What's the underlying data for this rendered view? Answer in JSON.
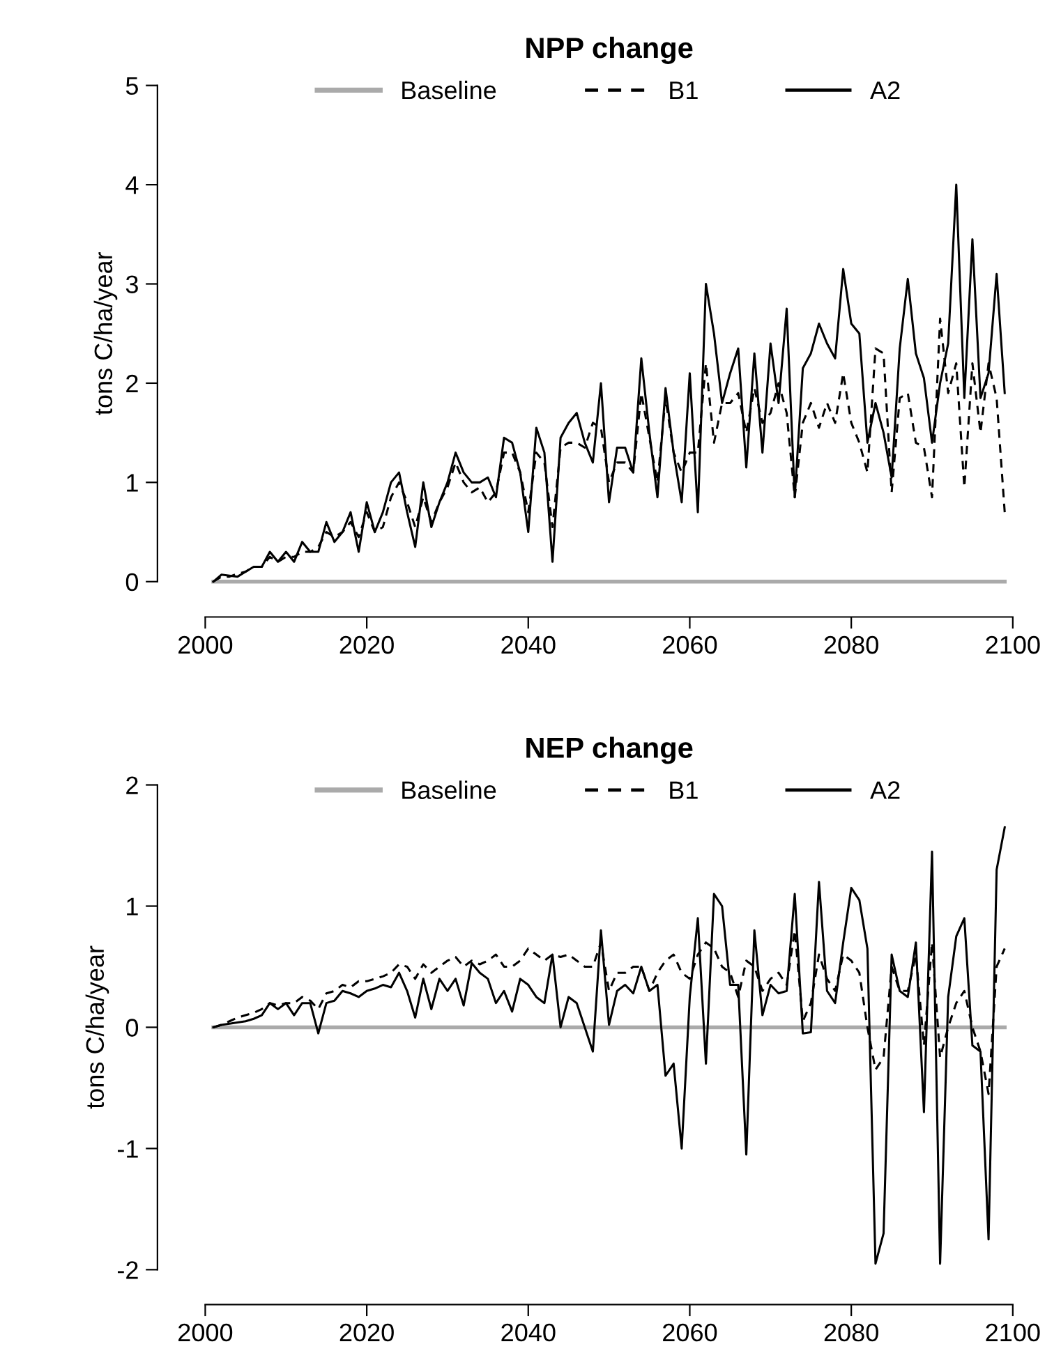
{
  "chart_data": [
    {
      "type": "line",
      "title": "NPP change",
      "ylabel": "tons C/ha/year",
      "x": [
        2001,
        2002,
        2003,
        2004,
        2005,
        2006,
        2007,
        2008,
        2009,
        2010,
        2011,
        2012,
        2013,
        2014,
        2015,
        2016,
        2017,
        2018,
        2019,
        2020,
        2021,
        2022,
        2023,
        2024,
        2025,
        2026,
        2027,
        2028,
        2029,
        2030,
        2031,
        2032,
        2033,
        2034,
        2035,
        2036,
        2037,
        2038,
        2039,
        2040,
        2041,
        2042,
        2043,
        2044,
        2045,
        2046,
        2047,
        2048,
        2049,
        2050,
        2051,
        2052,
        2053,
        2054,
        2055,
        2056,
        2057,
        2058,
        2059,
        2060,
        2061,
        2062,
        2063,
        2064,
        2065,
        2066,
        2067,
        2068,
        2069,
        2070,
        2071,
        2072,
        2073,
        2074,
        2075,
        2076,
        2077,
        2078,
        2079,
        2080,
        2081,
        2082,
        2083,
        2084,
        2085,
        2086,
        2087,
        2088,
        2089,
        2090,
        2091,
        2092,
        2093,
        2094,
        2095,
        2096,
        2097,
        2098,
        2099
      ],
      "series": [
        {
          "name": "Baseline",
          "color": "#aaaaaa",
          "line_style": "solid",
          "values": [
            0,
            0,
            0,
            0,
            0,
            0,
            0,
            0,
            0,
            0,
            0,
            0,
            0,
            0,
            0,
            0,
            0,
            0,
            0,
            0,
            0,
            0,
            0,
            0,
            0,
            0,
            0,
            0,
            0,
            0,
            0,
            0,
            0,
            0,
            0,
            0,
            0,
            0,
            0,
            0,
            0,
            0,
            0,
            0,
            0,
            0,
            0,
            0,
            0,
            0,
            0,
            0,
            0,
            0,
            0,
            0,
            0,
            0,
            0,
            0,
            0,
            0,
            0,
            0,
            0,
            0,
            0,
            0,
            0,
            0,
            0,
            0,
            0,
            0,
            0,
            0,
            0,
            0,
            0,
            0,
            0,
            0,
            0,
            0,
            0,
            0,
            0,
            0,
            0,
            0,
            0,
            0,
            0,
            0,
            0,
            0,
            0,
            0,
            0
          ]
        },
        {
          "name": "B1",
          "color": "#000000",
          "line_style": "dashed",
          "values": [
            0,
            0.05,
            0.05,
            0.08,
            0.1,
            0.15,
            0.15,
            0.25,
            0.2,
            0.25,
            0.25,
            0.3,
            0.3,
            0.35,
            0.5,
            0.45,
            0.5,
            0.6,
            0.45,
            0.7,
            0.5,
            0.55,
            0.85,
            1.0,
            0.8,
            0.55,
            0.85,
            0.6,
            0.8,
            0.95,
            1.2,
            1.0,
            0.9,
            0.95,
            0.8,
            0.9,
            1.3,
            1.3,
            1.1,
            0.7,
            1.3,
            1.2,
            0.55,
            1.35,
            1.4,
            1.4,
            1.35,
            1.6,
            1.55,
            1.0,
            1.2,
            1.2,
            1.1,
            1.9,
            1.45,
            1.0,
            1.85,
            1.3,
            1.1,
            1.3,
            1.3,
            2.2,
            1.4,
            1.8,
            1.8,
            1.9,
            1.5,
            1.95,
            1.6,
            1.7,
            2.0,
            1.7,
            0.85,
            1.6,
            1.8,
            1.55,
            1.8,
            1.6,
            2.1,
            1.6,
            1.4,
            1.1,
            2.35,
            2.3,
            0.9,
            1.85,
            1.9,
            1.4,
            1.35,
            0.85,
            2.65,
            1.9,
            2.2,
            0.95,
            2.2,
            1.5,
            2.2,
            1.85,
            0.7
          ]
        },
        {
          "name": "A2",
          "color": "#000000",
          "line_style": "solid",
          "values": [
            0,
            0.07,
            0.06,
            0.05,
            0.1,
            0.15,
            0.15,
            0.3,
            0.2,
            0.3,
            0.2,
            0.4,
            0.3,
            0.3,
            0.6,
            0.4,
            0.5,
            0.7,
            0.3,
            0.8,
            0.5,
            0.7,
            1.0,
            1.1,
            0.7,
            0.35,
            1.0,
            0.55,
            0.8,
            1.0,
            1.3,
            1.1,
            1.0,
            1.0,
            1.05,
            0.85,
            1.45,
            1.4,
            1.1,
            0.5,
            1.55,
            1.3,
            0.2,
            1.45,
            1.6,
            1.7,
            1.4,
            1.2,
            2.0,
            0.8,
            1.35,
            1.35,
            1.1,
            2.25,
            1.5,
            0.85,
            1.95,
            1.3,
            0.8,
            2.1,
            0.7,
            3.0,
            2.5,
            1.8,
            2.1,
            2.35,
            1.15,
            2.3,
            1.3,
            2.4,
            1.8,
            2.75,
            0.85,
            2.15,
            2.3,
            2.6,
            2.4,
            2.25,
            3.15,
            2.6,
            2.5,
            1.4,
            1.8,
            1.5,
            1.05,
            2.35,
            3.05,
            2.3,
            2.05,
            1.4,
            2.0,
            2.4,
            4.0,
            1.85,
            3.45,
            1.85,
            2.1,
            3.1,
            1.9
          ]
        }
      ],
      "xlim": [
        2000,
        2100
      ],
      "xticks": [
        2000,
        2020,
        2040,
        2060,
        2080,
        2100
      ],
      "ylim": [
        0,
        5
      ],
      "yticks": [
        0,
        1,
        2,
        3,
        4,
        5
      ],
      "legend": "top",
      "grid": false
    },
    {
      "type": "line",
      "title": "NEP change",
      "ylabel": "tons C/ha/year",
      "x": [
        2001,
        2002,
        2003,
        2004,
        2005,
        2006,
        2007,
        2008,
        2009,
        2010,
        2011,
        2012,
        2013,
        2014,
        2015,
        2016,
        2017,
        2018,
        2019,
        2020,
        2021,
        2022,
        2023,
        2024,
        2025,
        2026,
        2027,
        2028,
        2029,
        2030,
        2031,
        2032,
        2033,
        2034,
        2035,
        2036,
        2037,
        2038,
        2039,
        2040,
        2041,
        2042,
        2043,
        2044,
        2045,
        2046,
        2047,
        2048,
        2049,
        2050,
        2051,
        2052,
        2053,
        2054,
        2055,
        2056,
        2057,
        2058,
        2059,
        2060,
        2061,
        2062,
        2063,
        2064,
        2065,
        2066,
        2067,
        2068,
        2069,
        2070,
        2071,
        2072,
        2073,
        2074,
        2075,
        2076,
        2077,
        2078,
        2079,
        2080,
        2081,
        2082,
        2083,
        2084,
        2085,
        2086,
        2087,
        2088,
        2089,
        2090,
        2091,
        2092,
        2093,
        2094,
        2095,
        2096,
        2097,
        2098,
        2099
      ],
      "series": [
        {
          "name": "Baseline",
          "color": "#aaaaaa",
          "line_style": "solid",
          "values": [
            0,
            0,
            0,
            0,
            0,
            0,
            0,
            0,
            0,
            0,
            0,
            0,
            0,
            0,
            0,
            0,
            0,
            0,
            0,
            0,
            0,
            0,
            0,
            0,
            0,
            0,
            0,
            0,
            0,
            0,
            0,
            0,
            0,
            0,
            0,
            0,
            0,
            0,
            0,
            0,
            0,
            0,
            0,
            0,
            0,
            0,
            0,
            0,
            0,
            0,
            0,
            0,
            0,
            0,
            0,
            0,
            0,
            0,
            0,
            0,
            0,
            0,
            0,
            0,
            0,
            0,
            0,
            0,
            0,
            0,
            0,
            0,
            0,
            0,
            0,
            0,
            0,
            0,
            0,
            0,
            0,
            0,
            0,
            0,
            0,
            0,
            0,
            0,
            0,
            0,
            0,
            0,
            0,
            0,
            0,
            0,
            0,
            0,
            0
          ]
        },
        {
          "name": "B1",
          "color": "#000000",
          "line_style": "dashed",
          "values": [
            0,
            0.02,
            0.05,
            0.08,
            0.1,
            0.12,
            0.15,
            0.2,
            0.18,
            0.2,
            0.2,
            0.25,
            0.22,
            0.15,
            0.28,
            0.3,
            0.35,
            0.33,
            0.38,
            0.38,
            0.4,
            0.42,
            0.45,
            0.52,
            0.5,
            0.4,
            0.52,
            0.45,
            0.5,
            0.55,
            0.58,
            0.5,
            0.55,
            0.52,
            0.55,
            0.6,
            0.5,
            0.5,
            0.55,
            0.65,
            0.6,
            0.55,
            0.6,
            0.58,
            0.6,
            0.55,
            0.5,
            0.5,
            0.7,
            0.3,
            0.45,
            0.45,
            0.5,
            0.5,
            0.3,
            0.45,
            0.55,
            0.6,
            0.45,
            0.4,
            0.6,
            0.7,
            0.65,
            0.5,
            0.45,
            0.25,
            0.55,
            0.5,
            0.3,
            0.4,
            0.45,
            0.35,
            0.8,
            0.05,
            0.2,
            0.6,
            0.4,
            0.3,
            0.6,
            0.55,
            0.45,
            0.0,
            -0.35,
            -0.25,
            0.5,
            0.3,
            0.3,
            0.6,
            -0.15,
            0.7,
            -0.25,
            0.0,
            0.2,
            0.3,
            0.0,
            -0.2,
            -0.55,
            0.5,
            0.65
          ]
        },
        {
          "name": "A2",
          "color": "#000000",
          "line_style": "solid",
          "values": [
            0,
            0.02,
            0.03,
            0.04,
            0.05,
            0.07,
            0.1,
            0.2,
            0.15,
            0.2,
            0.1,
            0.2,
            0.2,
            -0.05,
            0.2,
            0.22,
            0.3,
            0.28,
            0.25,
            0.3,
            0.32,
            0.35,
            0.33,
            0.45,
            0.3,
            0.08,
            0.4,
            0.15,
            0.4,
            0.3,
            0.4,
            0.18,
            0.53,
            0.45,
            0.4,
            0.2,
            0.3,
            0.13,
            0.4,
            0.35,
            0.25,
            0.2,
            0.6,
            0.0,
            0.25,
            0.2,
            0.0,
            -0.2,
            0.8,
            0.02,
            0.3,
            0.35,
            0.28,
            0.5,
            0.3,
            0.35,
            -0.4,
            -0.3,
            -1.0,
            0.25,
            0.9,
            -0.3,
            1.1,
            1.0,
            0.35,
            0.35,
            -1.05,
            0.8,
            0.1,
            0.35,
            0.28,
            0.3,
            1.1,
            -0.05,
            -0.04,
            1.2,
            0.3,
            0.2,
            0.7,
            1.15,
            1.05,
            0.65,
            -1.95,
            -1.7,
            0.6,
            0.3,
            0.25,
            0.7,
            -0.7,
            1.45,
            -1.95,
            0.25,
            0.75,
            0.9,
            -0.15,
            -0.2,
            -1.75,
            1.3,
            1.65
          ]
        }
      ],
      "xlim": [
        2000,
        2100
      ],
      "xticks": [
        2000,
        2020,
        2040,
        2060,
        2080,
        2100
      ],
      "ylim": [
        -2,
        2
      ],
      "yticks": [
        {
          "value": -2,
          "label": "-2"
        },
        {
          "value": -1,
          "label": "-1"
        },
        0,
        1,
        2
      ],
      "legend": "top",
      "grid": false
    }
  ]
}
